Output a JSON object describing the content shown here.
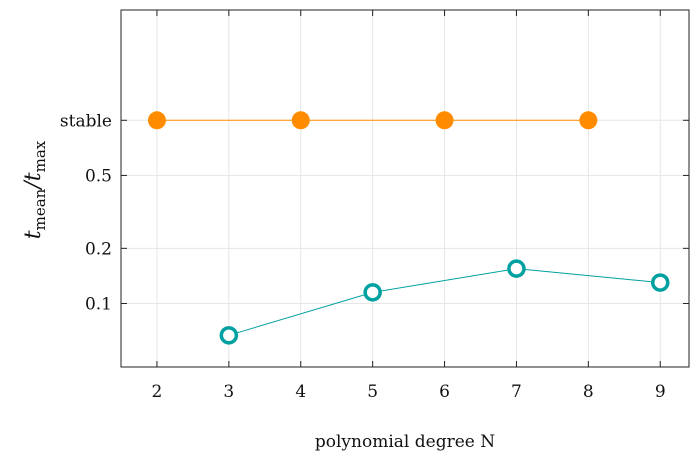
{
  "chart_data": {
    "type": "line",
    "title": "",
    "xlabel": "polynomial degree N",
    "ylabel": {
      "base": "t",
      "num_sub": "mean",
      "separator": "/",
      "den_sub": "max"
    },
    "xlim": [
      1.5,
      9.4
    ],
    "x_ticks": [
      2,
      3,
      4,
      5,
      6,
      7,
      8,
      9
    ],
    "y_scale": "log",
    "ylim": [
      0.045,
      4.0
    ],
    "y_ticks": [
      {
        "value": 0.1,
        "label": "0.1"
      },
      {
        "value": 0.2,
        "label": "0.2"
      },
      {
        "value": 0.5,
        "label": "0.5"
      },
      {
        "value": 1.0,
        "label": "stable"
      }
    ],
    "grid": true,
    "legend": "none",
    "series": [
      {
        "color": "#ff8c00",
        "marker": "filled-circle",
        "x": [
          2,
          4,
          6,
          8
        ],
        "y": [
          1.0,
          1.0,
          1.0,
          1.0
        ]
      },
      {
        "color": "#00a0a0",
        "marker": "open-circle",
        "x": [
          3,
          5,
          7,
          9
        ],
        "y": [
          0.067,
          0.115,
          0.155,
          0.13
        ]
      }
    ]
  }
}
